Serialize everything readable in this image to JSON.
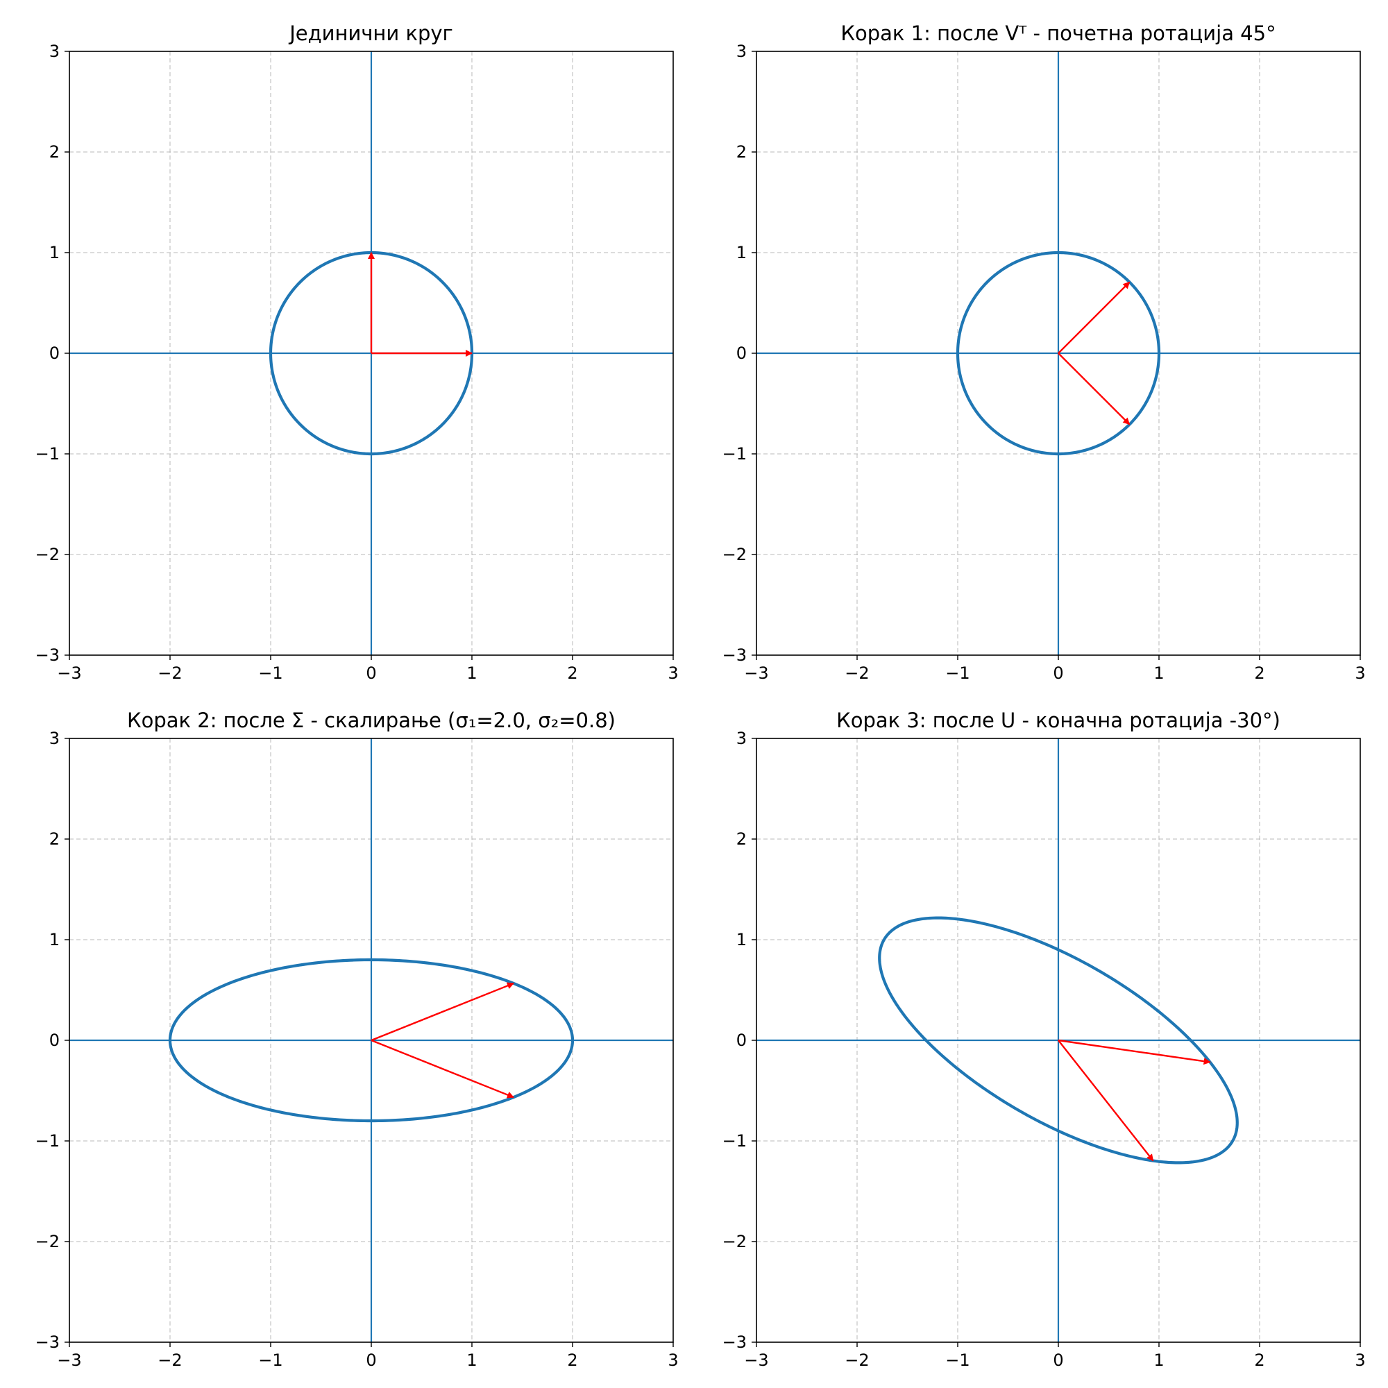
{
  "colors": {
    "curve": "#1f77b4",
    "axis_line": "#1f77b4",
    "vector": "#ff0000",
    "grid": "#b0b0b0",
    "frame": "#000000"
  },
  "chart_data": [
    {
      "type": "line",
      "title": "Јединични круг",
      "xlim": [
        -3,
        3
      ],
      "ylim": [
        -3,
        3
      ],
      "xticks": [
        "−3",
        "−2",
        "−1",
        "0",
        "1",
        "2",
        "3"
      ],
      "yticks": [
        "−3",
        "−2",
        "−1",
        "0",
        "1",
        "2",
        "3"
      ],
      "grid": true,
      "grid_style": "dashed",
      "curve": {
        "shape": "ellipse",
        "a": 1.0,
        "b": 1.0,
        "rotation_deg": 0
      },
      "vectors": [
        {
          "x": 1.0,
          "y": 0.0
        },
        {
          "x": 0.0,
          "y": 1.0
        }
      ]
    },
    {
      "type": "line",
      "title": "Корак 1: после Vᵀ - почетна ротација 45°",
      "xlim": [
        -3,
        3
      ],
      "ylim": [
        -3,
        3
      ],
      "xticks": [
        "−3",
        "−2",
        "−1",
        "0",
        "1",
        "2",
        "3"
      ],
      "yticks": [
        "−3",
        "−2",
        "−1",
        "0",
        "1",
        "2",
        "3"
      ],
      "grid": true,
      "grid_style": "dashed",
      "curve": {
        "shape": "ellipse",
        "a": 1.0,
        "b": 1.0,
        "rotation_deg": 0
      },
      "vectors": [
        {
          "x": 0.707,
          "y": 0.707
        },
        {
          "x": 0.707,
          "y": -0.707
        }
      ]
    },
    {
      "type": "line",
      "title": "Корак 2: после Σ - скалирање (σ₁=2.0, σ₂=0.8)",
      "xlim": [
        -3,
        3
      ],
      "ylim": [
        -3,
        3
      ],
      "xticks": [
        "−3",
        "−2",
        "−1",
        "0",
        "1",
        "2",
        "3"
      ],
      "yticks": [
        "−3",
        "−2",
        "−1",
        "0",
        "1",
        "2",
        "3"
      ],
      "grid": true,
      "grid_style": "dashed",
      "curve": {
        "shape": "ellipse",
        "a": 2.0,
        "b": 0.8,
        "rotation_deg": 0
      },
      "vectors": [
        {
          "x": 1.414,
          "y": 0.566
        },
        {
          "x": 1.414,
          "y": -0.566
        }
      ]
    },
    {
      "type": "line",
      "title": "Корак 3: после U - коначна ротација -30°)",
      "xlim": [
        -3,
        3
      ],
      "ylim": [
        -3,
        3
      ],
      "xticks": [
        "−3",
        "−2",
        "−1",
        "0",
        "1",
        "2",
        "3"
      ],
      "yticks": [
        "−3",
        "−2",
        "−1",
        "0",
        "1",
        "2",
        "3"
      ],
      "grid": true,
      "grid_style": "dashed",
      "curve": {
        "shape": "ellipse",
        "a": 2.0,
        "b": 0.8,
        "rotation_deg": -30
      },
      "vectors": [
        {
          "x": 1.508,
          "y": -0.217
        },
        {
          "x": 0.942,
          "y": -1.197
        }
      ]
    }
  ]
}
